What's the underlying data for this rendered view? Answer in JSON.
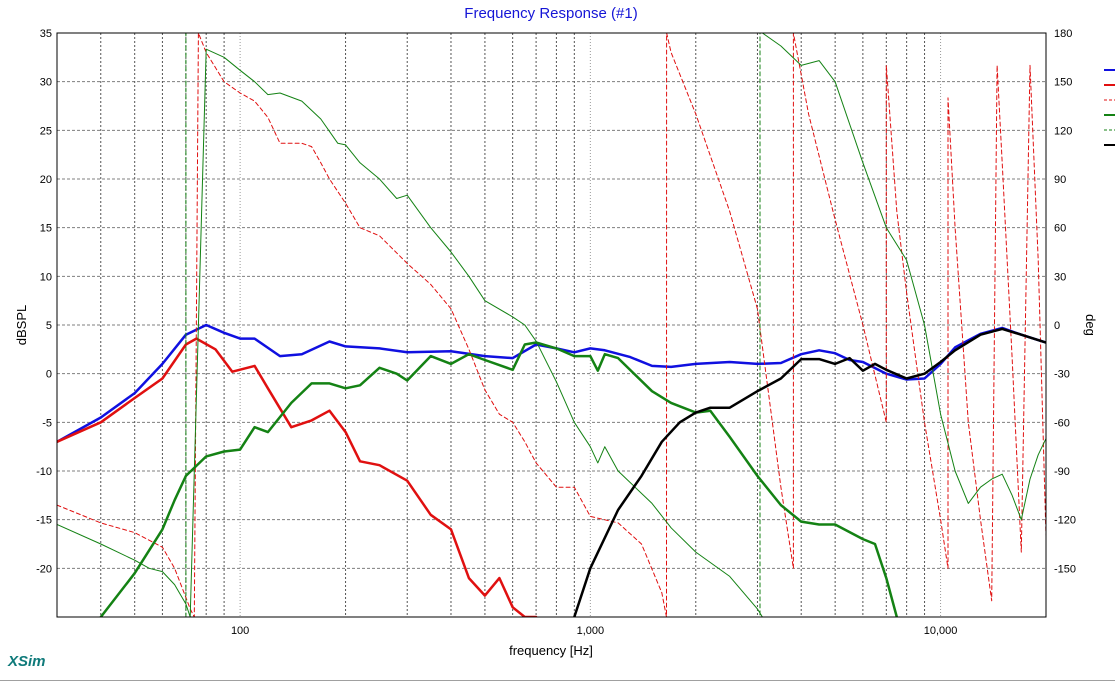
{
  "brand": "XSim",
  "colors": {
    "title": "#1515d6",
    "brand": "#0f7a7a",
    "blue": "#1010e0",
    "red": "#e01010",
    "green": "#148214",
    "black": "#000000",
    "grid": "#7f7f7f"
  },
  "chart_data": {
    "type": "line",
    "title": "Frequency Response (#1)",
    "xlabel": "frequency [Hz]",
    "ylabel": "dBSPL",
    "y2label": "deg",
    "xscale": "log",
    "xlim": [
      30,
      20000
    ],
    "ylim": [
      -25,
      35
    ],
    "y2lim": [
      -180,
      180
    ],
    "grid": true,
    "x_ticks": [
      100,
      1000,
      10000
    ],
    "x_tick_labels": [
      "100",
      "1,000",
      "10,000"
    ],
    "y_ticks": [
      35,
      30,
      25,
      20,
      15,
      10,
      5,
      0,
      -5,
      -10,
      -15,
      -20
    ],
    "y2_ticks": [
      180,
      150,
      120,
      90,
      60,
      30,
      0,
      -30,
      -60,
      -90,
      -120,
      -150
    ],
    "legend_position": "right (entries clipped)",
    "series": [
      {
        "color": "#1010e0",
        "axis": "left",
        "style": "solid",
        "width": 2.5,
        "x": [
          30,
          40,
          50,
          60,
          70,
          80,
          90,
          100,
          110,
          130,
          150,
          180,
          200,
          250,
          300,
          400,
          500,
          600,
          700,
          800,
          900,
          1000,
          1100,
          1300,
          1500,
          1700,
          2000,
          2500,
          3000,
          3500,
          4000,
          4500,
          5000,
          5500,
          6000,
          7000,
          8000,
          9000,
          10000,
          11000,
          13000,
          15000,
          17000,
          20000
        ],
        "y": [
          -7,
          -4.5,
          -2,
          1,
          4,
          5,
          4.2,
          3.6,
          3.6,
          1.8,
          2,
          3.3,
          2.8,
          2.6,
          2.2,
          2.3,
          1.8,
          1.6,
          3,
          2.6,
          2.2,
          2.6,
          2.4,
          1.7,
          0.8,
          0.7,
          1,
          1.2,
          1,
          1.1,
          2,
          2.4,
          2.1,
          1.4,
          1.2,
          0,
          -0.6,
          -0.5,
          1,
          2.7,
          4.1,
          4.7,
          4,
          3.2
        ]
      },
      {
        "color": "#e01010",
        "axis": "left",
        "style": "solid",
        "width": 2.5,
        "x": [
          30,
          40,
          50,
          60,
          70,
          75,
          85,
          95,
          110,
          120,
          140,
          160,
          180,
          200,
          220,
          250,
          300,
          350,
          400,
          450,
          500,
          550,
          600,
          650,
          700
        ],
        "y": [
          -7,
          -5,
          -2.5,
          -0.5,
          3,
          3.6,
          2.5,
          0.2,
          0.8,
          -1.5,
          -5.5,
          -4.8,
          -3.8,
          -6,
          -9,
          -9.4,
          -11,
          -14.5,
          -16,
          -21,
          -22.8,
          -21,
          -24,
          -25,
          -25
        ]
      },
      {
        "color": "#e01010",
        "axis": "right",
        "style": "dashed",
        "width": 1,
        "x": [
          30,
          40,
          50,
          60,
          65,
          70,
          72,
          74,
          76,
          80,
          90,
          100,
          110,
          120,
          130,
          150,
          160,
          170,
          180,
          200,
          220,
          250,
          300,
          350,
          400,
          450,
          500,
          550,
          600,
          650,
          700,
          800,
          900,
          1000,
          1200,
          1400,
          1600,
          1650,
          1651,
          1700,
          2000,
          2500,
          3000,
          3500,
          3800,
          3801,
          4200,
          5000,
          6000,
          7000,
          7001,
          7500,
          8000,
          9000,
          10000,
          10500,
          10501,
          11000,
          12000,
          13000,
          14000,
          14500,
          15000,
          16000,
          17000,
          18000,
          19000,
          20000
        ],
        "y": [
          -111,
          -122,
          -128,
          -137,
          -150,
          -168,
          -175,
          -180,
          180,
          168,
          150,
          143,
          138,
          128,
          112,
          112,
          110,
          100,
          90,
          75,
          60,
          55,
          38,
          25,
          10,
          -15,
          -40,
          -55,
          -60,
          -72,
          -85,
          -100,
          -100,
          -118,
          -122,
          -135,
          -165,
          -180,
          180,
          168,
          130,
          70,
          10,
          -100,
          -150,
          180,
          130,
          65,
          0,
          -60,
          160,
          70,
          20,
          -60,
          -120,
          -150,
          140,
          60,
          -60,
          -120,
          -170,
          160,
          100,
          -20,
          -140,
          160,
          40,
          -130
        ]
      },
      {
        "color": "#148214",
        "axis": "left",
        "style": "solid",
        "width": 2.5,
        "x": [
          40,
          50,
          60,
          65,
          70,
          80,
          90,
          100,
          110,
          120,
          140,
          160,
          180,
          200,
          220,
          250,
          280,
          300,
          350,
          400,
          450,
          500,
          600,
          650,
          700,
          800,
          900,
          1000,
          1050,
          1100,
          1200,
          1500,
          1700,
          2000,
          2200,
          2500,
          3000,
          3500,
          4000,
          4500,
          5000,
          6000,
          6500,
          7000,
          7500
        ],
        "y": [
          -25,
          -20.5,
          -16,
          -13,
          -10.5,
          -8.5,
          -8,
          -7.8,
          -5.5,
          -6,
          -3,
          -1,
          -1,
          -1.5,
          -1.2,
          0.6,
          0,
          -0.7,
          1.8,
          1,
          2,
          1.4,
          0.4,
          3,
          3.2,
          2.6,
          1.8,
          1.8,
          0.3,
          2,
          1.6,
          -1.8,
          -3,
          -4,
          -3.8,
          -6.5,
          -10.5,
          -13.5,
          -15.2,
          -15.5,
          -15.5,
          -17,
          -17.5,
          -21,
          -25
        ]
      },
      {
        "color": "#148214",
        "axis": "right",
        "style": "solid",
        "width": 1,
        "x": [
          30,
          40,
          50,
          55,
          60,
          65,
          70,
          72,
          80,
          90,
          100,
          110,
          120,
          130,
          150,
          170,
          190,
          200,
          220,
          250,
          280,
          300,
          350,
          400,
          450,
          500,
          600,
          650,
          700,
          800,
          900,
          1000,
          1050,
          1100,
          1200,
          1500,
          1700,
          2000,
          2500,
          3000,
          3100
        ],
        "y": [
          -123,
          -135,
          -145,
          -150,
          -152,
          -160,
          -172,
          -180,
          170,
          165,
          157,
          150,
          142,
          143,
          138,
          127,
          112,
          111,
          100,
          90,
          78,
          80,
          60,
          45,
          30,
          15,
          5,
          0,
          -10,
          -35,
          -60,
          -75,
          -85,
          -75,
          -90,
          -110,
          -125,
          -140,
          -155,
          -175,
          -180
        ]
      },
      {
        "color": "#148214",
        "axis": "right",
        "style": "solid",
        "width": 1,
        "x": [
          3100,
          3500,
          4000,
          4500,
          5000,
          6000,
          7000,
          8000,
          9000,
          10000,
          11000,
          12000,
          13000,
          14000,
          15000,
          16000,
          17000,
          18000,
          19000,
          20000
        ],
        "y": [
          180,
          172,
          160,
          163,
          150,
          100,
          60,
          40,
          0,
          -55,
          -90,
          -110,
          -100,
          -95,
          -92,
          -105,
          -120,
          -95,
          -80,
          -70
        ]
      },
      {
        "color": "#148214",
        "axis": "right",
        "style": "dashed",
        "width": 1,
        "x": [
          70,
          70,
          3050,
          3050
        ],
        "y": [
          -180,
          180,
          180,
          -180
        ]
      },
      {
        "color": "#000000",
        "axis": "left",
        "style": "solid",
        "width": 2.5,
        "x": [
          900,
          1000,
          1200,
          1400,
          1600,
          1800,
          2000,
          2200,
          2500,
          3000,
          3500,
          4000,
          4500,
          5000,
          5500,
          6000,
          6500,
          7000,
          8000,
          9000,
          10000,
          11000,
          13000,
          15000,
          17000,
          20000
        ],
        "y": [
          -25,
          -20,
          -14,
          -10.5,
          -7,
          -5,
          -4,
          -3.5,
          -3.5,
          -1.8,
          -0.5,
          1.5,
          1.5,
          1,
          1.6,
          0.3,
          1,
          0.4,
          -0.5,
          0,
          1.2,
          2.4,
          4,
          4.6,
          4,
          3.2
        ]
      }
    ]
  }
}
